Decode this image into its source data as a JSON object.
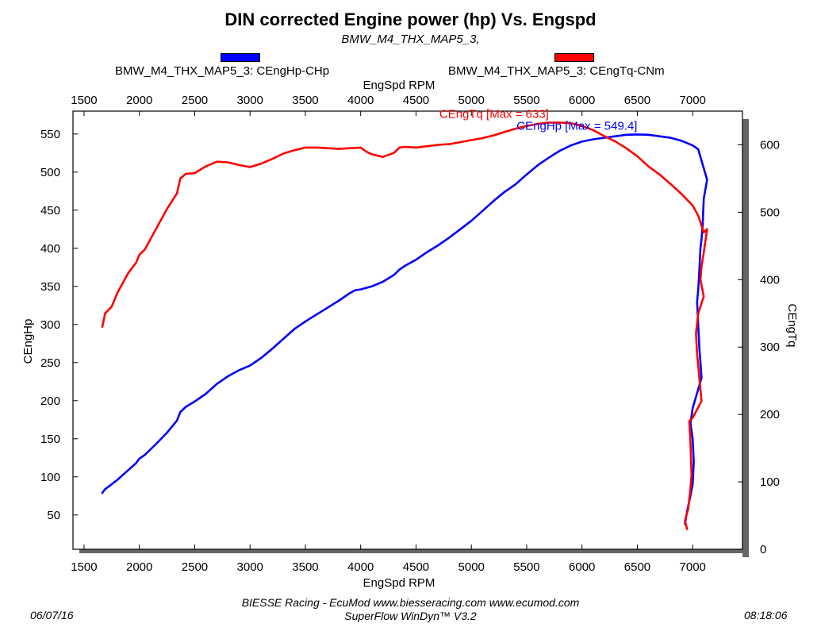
{
  "title": "DIN corrected Engine power (hp) Vs. Engspd",
  "subtitle": "BMW_M4_THX_MAP5_3,",
  "legend": [
    {
      "label": "BMW_M4_THX_MAP5_3: CEngHp-CHp",
      "color": "#0000ff"
    },
    {
      "label": "BMW_M4_THX_MAP5_3: CEngTq-CNm",
      "color": "#ff0000"
    }
  ],
  "footer": {
    "date": "06/07/16",
    "line1": "BIESSE Racing - EcuMod www.biesseracing.com www.ecumod.com",
    "line2": "SuperFlow WinDyn™ V3.2",
    "time": "08:18:06"
  },
  "chart_data": {
    "type": "line",
    "xlabel": "EngSpd RPM",
    "xlabel_top": "EngSpd RPM",
    "ylabel_left": "CEngHp",
    "ylabel_right": "CEngTq",
    "xlim": [
      1400,
      7450
    ],
    "ylim_left": [
      5,
      580
    ],
    "ylim_right": [
      0,
      650
    ],
    "x_ticks": [
      1500,
      2000,
      2500,
      3000,
      3500,
      4000,
      4500,
      5000,
      5500,
      6000,
      6500,
      7000
    ],
    "y_ticks_left": [
      50,
      100,
      150,
      200,
      250,
      300,
      350,
      400,
      450,
      500,
      550
    ],
    "y_ticks_right": [
      0,
      100,
      200,
      300,
      400,
      500,
      600
    ],
    "grid": true,
    "annotations": [
      {
        "text": "CEngHp [Max = 549.4]",
        "series": "CEngHp",
        "x": 6500,
        "y": 549.4
      },
      {
        "text": "CEngTq [Max = 633]",
        "series": "CEngTq",
        "x": 5700,
        "y": 633
      }
    ],
    "series": [
      {
        "name": "CEngHp",
        "axis": "left",
        "color": "#0000ff",
        "points": [
          [
            1665,
            79
          ],
          [
            1690,
            84
          ],
          [
            1720,
            87
          ],
          [
            1800,
            96
          ],
          [
            1900,
            109
          ],
          [
            1970,
            118
          ],
          [
            2000,
            124
          ],
          [
            2050,
            129
          ],
          [
            2150,
            143
          ],
          [
            2250,
            158
          ],
          [
            2340,
            174
          ],
          [
            2370,
            185
          ],
          [
            2420,
            192
          ],
          [
            2500,
            199
          ],
          [
            2600,
            209
          ],
          [
            2700,
            222
          ],
          [
            2800,
            232
          ],
          [
            2900,
            240
          ],
          [
            3000,
            246
          ],
          [
            3100,
            256
          ],
          [
            3200,
            268
          ],
          [
            3300,
            281
          ],
          [
            3400,
            294
          ],
          [
            3500,
            304
          ],
          [
            3600,
            313
          ],
          [
            3700,
            322
          ],
          [
            3800,
            331
          ],
          [
            3900,
            341
          ],
          [
            3950,
            345
          ],
          [
            4000,
            346
          ],
          [
            4100,
            350
          ],
          [
            4200,
            356
          ],
          [
            4300,
            365
          ],
          [
            4350,
            372
          ],
          [
            4400,
            377
          ],
          [
            4500,
            385
          ],
          [
            4600,
            395
          ],
          [
            4700,
            404
          ],
          [
            4800,
            414
          ],
          [
            4900,
            425
          ],
          [
            5000,
            436
          ],
          [
            5100,
            449
          ],
          [
            5200,
            462
          ],
          [
            5300,
            474
          ],
          [
            5400,
            484
          ],
          [
            5500,
            497
          ],
          [
            5600,
            509
          ],
          [
            5700,
            519
          ],
          [
            5800,
            528
          ],
          [
            5900,
            535
          ],
          [
            6000,
            540
          ],
          [
            6100,
            543
          ],
          [
            6200,
            545
          ],
          [
            6300,
            547
          ],
          [
            6400,
            549
          ],
          [
            6500,
            549.4
          ],
          [
            6600,
            549
          ],
          [
            6700,
            547
          ],
          [
            6800,
            545
          ],
          [
            6900,
            541
          ],
          [
            7000,
            535
          ],
          [
            7050,
            530
          ],
          [
            7100,
            505
          ],
          [
            7130,
            490
          ],
          [
            7100,
            465
          ],
          [
            7090,
            430
          ],
          [
            7080,
            412
          ],
          [
            7070,
            400
          ],
          [
            7060,
            370
          ],
          [
            7050,
            345
          ],
          [
            7040,
            330
          ],
          [
            7050,
            300
          ],
          [
            7060,
            270
          ],
          [
            7080,
            230
          ],
          [
            7050,
            215
          ],
          [
            7000,
            190
          ],
          [
            6980,
            170
          ],
          [
            7000,
            150
          ],
          [
            7010,
            120
          ],
          [
            7000,
            90
          ],
          [
            6980,
            75
          ],
          [
            6950,
            55
          ],
          [
            6930,
            38
          ]
        ]
      },
      {
        "name": "CEngTq",
        "axis": "right",
        "color": "#ff0000",
        "points": [
          [
            1665,
            330
          ],
          [
            1690,
            350
          ],
          [
            1750,
            360
          ],
          [
            1800,
            380
          ],
          [
            1900,
            410
          ],
          [
            1970,
            425
          ],
          [
            2000,
            437
          ],
          [
            2050,
            445
          ],
          [
            2150,
            475
          ],
          [
            2250,
            505
          ],
          [
            2340,
            528
          ],
          [
            2370,
            550
          ],
          [
            2420,
            557
          ],
          [
            2500,
            558
          ],
          [
            2600,
            568
          ],
          [
            2700,
            575
          ],
          [
            2800,
            574
          ],
          [
            2900,
            570
          ],
          [
            3000,
            567
          ],
          [
            3100,
            572
          ],
          [
            3200,
            579
          ],
          [
            3300,
            587
          ],
          [
            3400,
            592
          ],
          [
            3500,
            596
          ],
          [
            3600,
            596
          ],
          [
            3700,
            595
          ],
          [
            3800,
            594
          ],
          [
            3900,
            595
          ],
          [
            4000,
            596
          ],
          [
            4050,
            590
          ],
          [
            4100,
            586
          ],
          [
            4200,
            582
          ],
          [
            4300,
            588
          ],
          [
            4350,
            596
          ],
          [
            4400,
            597
          ],
          [
            4500,
            596
          ],
          [
            4600,
            598
          ],
          [
            4700,
            600
          ],
          [
            4800,
            601
          ],
          [
            4900,
            604
          ],
          [
            5000,
            607
          ],
          [
            5100,
            610
          ],
          [
            5200,
            614
          ],
          [
            5300,
            619
          ],
          [
            5400,
            624
          ],
          [
            5500,
            628
          ],
          [
            5600,
            631
          ],
          [
            5700,
            633
          ],
          [
            5800,
            633
          ],
          [
            5900,
            632
          ],
          [
            6000,
            628
          ],
          [
            6100,
            622
          ],
          [
            6200,
            613
          ],
          [
            6300,
            605
          ],
          [
            6400,
            595
          ],
          [
            6500,
            583
          ],
          [
            6600,
            568
          ],
          [
            6700,
            556
          ],
          [
            6800,
            542
          ],
          [
            6900,
            527
          ],
          [
            7000,
            510
          ],
          [
            7050,
            495
          ],
          [
            7100,
            470
          ],
          [
            7130,
            475
          ],
          [
            7100,
            440
          ],
          [
            7080,
            420
          ],
          [
            7070,
            400
          ],
          [
            7100,
            375
          ],
          [
            7050,
            350
          ],
          [
            7030,
            320
          ],
          [
            7040,
            290
          ],
          [
            7080,
            220
          ],
          [
            7000,
            195
          ],
          [
            6970,
            190
          ],
          [
            6980,
            160
          ],
          [
            6990,
            110
          ],
          [
            6980,
            90
          ],
          [
            6960,
            60
          ],
          [
            6930,
            42
          ],
          [
            6950,
            30
          ]
        ]
      }
    ]
  }
}
